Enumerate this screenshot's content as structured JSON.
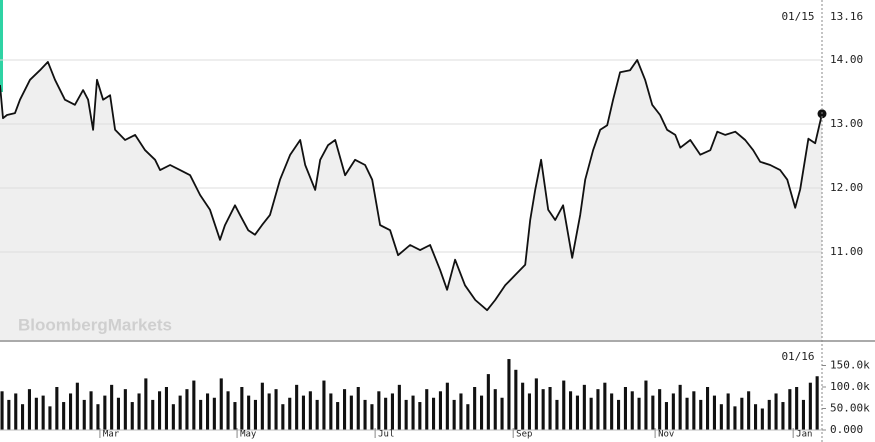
{
  "watermark": "BloombergMarkets",
  "chart_data": [
    {
      "type": "line",
      "color": "#111111",
      "area_color": "#efefef",
      "grid": true,
      "last_date": "01/15",
      "last_value": "13.16",
      "x": [
        0,
        1.3,
        3.1,
        6.6,
        8.8,
        13.2,
        17.6,
        21.1,
        24.2,
        28.6,
        33,
        36.6,
        38.8,
        41,
        42.7,
        45.4,
        48.5,
        50.7,
        55.1,
        59.5,
        63.9,
        68.3,
        70.5,
        74.9,
        79.3,
        83.7,
        88.1,
        92.5,
        96.9,
        99.1,
        103.5,
        105.7,
        109.3,
        112.3,
        115.4,
        118.9,
        123.3,
        127.8,
        132.2,
        134.4,
        138.8,
        141,
        144.5,
        147.6,
        152,
        156.4,
        160.8,
        163.9,
        167.4,
        171.8,
        175.3,
        180.6,
        185,
        189.4,
        193.8,
        196.9,
        200.4,
        204.8,
        209.3,
        214.5,
        218.1,
        222.5,
        226.9,
        231.3,
        233.5,
        235.7,
        238.3,
        241.4,
        244.5,
        248,
        252,
        255.5,
        257.7,
        261.2,
        264.3,
        267.4,
        270,
        273.1,
        277.5,
        280.6,
        284.1,
        287.2,
        290.7,
        293.8,
        297.4,
        299.6,
        304,
        308.4,
        312.8,
        315.9,
        319.4,
        323.8,
        328.2,
        331.7,
        334.8,
        339.2,
        343.6,
        346.7,
        350.2,
        352.4,
        356,
        359,
        362
      ],
      "values": [
        13.61,
        13.09,
        13.14,
        13.17,
        13.38,
        13.69,
        13.84,
        13.97,
        13.69,
        13.38,
        13.3,
        13.53,
        13.38,
        12.91,
        13.69,
        13.38,
        13.45,
        12.91,
        12.75,
        12.83,
        12.59,
        12.44,
        12.28,
        12.36,
        12.28,
        12.2,
        11.89,
        11.66,
        11.19,
        11.42,
        11.73,
        11.58,
        11.34,
        11.27,
        11.42,
        11.58,
        12.13,
        12.52,
        12.75,
        12.36,
        11.97,
        12.44,
        12.67,
        12.75,
        12.2,
        12.44,
        12.36,
        12.13,
        11.42,
        11.34,
        10.95,
        11.11,
        11.03,
        11.11,
        10.72,
        10.41,
        10.88,
        10.48,
        10.25,
        10.09,
        10.25,
        10.48,
        10.64,
        10.8,
        11.5,
        11.97,
        12.44,
        11.66,
        11.5,
        11.73,
        10.91,
        11.58,
        12.13,
        12.59,
        12.91,
        12.98,
        13.38,
        13.81,
        13.84,
        14.0,
        13.69,
        13.3,
        13.14,
        12.91,
        12.83,
        12.63,
        12.75,
        12.52,
        12.59,
        12.88,
        12.83,
        12.88,
        12.75,
        12.59,
        12.41,
        12.36,
        12.28,
        12.13,
        11.69,
        11.98,
        12.77,
        12.7,
        13.16
      ],
      "xlim": [
        0,
        362
      ],
      "ylim": [
        9.625,
        14.9375
      ],
      "yticks": [
        {
          "value": 11,
          "label": "11.00"
        },
        {
          "value": 12,
          "label": "12.00"
        },
        {
          "value": 13,
          "label": "13.00"
        },
        {
          "value": 14,
          "label": "14.00"
        }
      ]
    },
    {
      "type": "bar",
      "color": "#111111",
      "last_date": "01/16",
      "values": [
        90000,
        70000,
        85000,
        60000,
        95000,
        75000,
        80000,
        55000,
        100000,
        65000,
        85000,
        110000,
        70000,
        90000,
        60000,
        80000,
        105000,
        75000,
        95000,
        65000,
        85000,
        120000,
        70000,
        90000,
        100000,
        60000,
        80000,
        95000,
        115000,
        70000,
        85000,
        75000,
        120000,
        90000,
        65000,
        100000,
        80000,
        70000,
        110000,
        85000,
        95000,
        60000,
        75000,
        105000,
        80000,
        90000,
        70000,
        115000,
        85000,
        65000,
        95000,
        80000,
        100000,
        70000,
        60000,
        90000,
        75000,
        85000,
        105000,
        70000,
        80000,
        65000,
        95000,
        75000,
        90000,
        110000,
        70000,
        85000,
        60000,
        100000,
        80000,
        130000,
        95000,
        75000,
        165000,
        140000,
        110000,
        85000,
        120000,
        95000,
        100000,
        70000,
        115000,
        90000,
        80000,
        105000,
        75000,
        95000,
        110000,
        85000,
        70000,
        100000,
        90000,
        75000,
        115000,
        80000,
        95000,
        65000,
        85000,
        105000,
        75000,
        90000,
        70000,
        100000,
        80000,
        60000,
        85000,
        55000,
        75000,
        90000,
        60000,
        50000,
        70000,
        85000,
        65000,
        95000,
        100000,
        70000,
        110000,
        125000
      ],
      "ylim": [
        0,
        200000
      ],
      "yticks": [
        {
          "value": 0,
          "label": "0.000"
        },
        {
          "value": 50000,
          "label": "50.00k"
        },
        {
          "value": 100000,
          "label": "100.0k"
        },
        {
          "value": 150000,
          "label": "150.0k"
        }
      ],
      "xlim": [
        0,
        362
      ],
      "xticks": [
        {
          "value": 44,
          "label": "Mar"
        },
        {
          "value": 104.4,
          "label": "May"
        },
        {
          "value": 165.2,
          "label": "Jul"
        },
        {
          "value": 226,
          "label": "Sep"
        },
        {
          "value": 288.5,
          "label": "Nov"
        },
        {
          "value": 349.3,
          "label": "Jan"
        }
      ]
    }
  ]
}
